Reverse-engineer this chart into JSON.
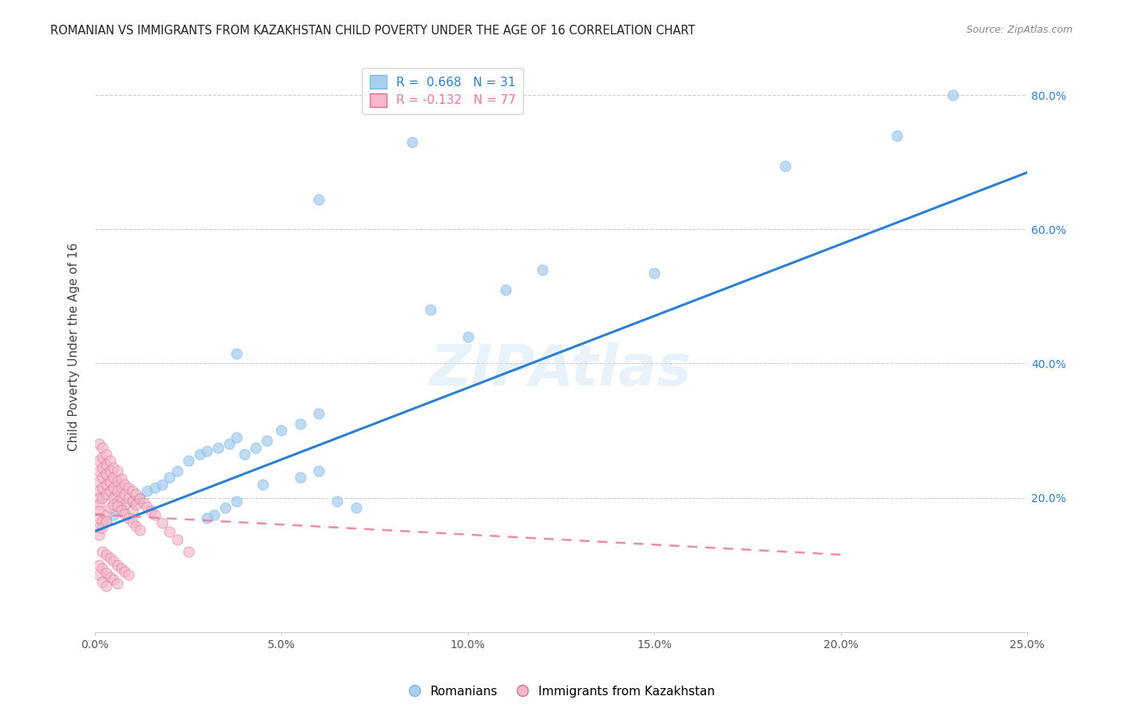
{
  "title": "ROMANIAN VS IMMIGRANTS FROM KAZAKHSTAN CHILD POVERTY UNDER THE AGE OF 16 CORRELATION CHART",
  "source": "Source: ZipAtlas.com",
  "ylabel": "Child Poverty Under the Age of 16",
  "xlim": [
    0.0,
    0.25
  ],
  "ylim": [
    0.0,
    0.85
  ],
  "x_ticks": [
    0.0,
    0.05,
    0.1,
    0.15,
    0.2,
    0.25
  ],
  "y_ticks": [
    0.2,
    0.4,
    0.6,
    0.8
  ],
  "romanians_color": "#a8cff0",
  "kazakhs_color": "#f5b8cb",
  "romanians_R": 0.668,
  "romanians_N": 31,
  "kazakhs_R": -0.132,
  "kazakhs_N": 77,
  "trend_blue_color": "#2b7fd4",
  "trend_pink_color": "#e8799a",
  "watermark": "ZIPAtlas",
  "blue_trend_x0": 0.0,
  "blue_trend_y0": 0.15,
  "blue_trend_x1": 0.25,
  "blue_trend_y1": 0.685,
  "pink_trend_x0": 0.0,
  "pink_trend_y0": 0.175,
  "pink_trend_x1": 0.2,
  "pink_trend_y1": 0.115,
  "romanians_x": [
    0.003,
    0.005,
    0.007,
    0.01,
    0.012,
    0.014,
    0.016,
    0.018,
    0.02,
    0.022,
    0.025,
    0.028,
    0.03,
    0.033,
    0.036,
    0.038,
    0.04,
    0.043,
    0.046,
    0.05,
    0.055,
    0.06,
    0.065,
    0.07,
    0.055,
    0.06,
    0.045,
    0.038,
    0.035,
    0.032,
    0.03
  ],
  "romanians_y": [
    0.165,
    0.175,
    0.185,
    0.195,
    0.2,
    0.21,
    0.215,
    0.22,
    0.23,
    0.24,
    0.255,
    0.265,
    0.27,
    0.275,
    0.28,
    0.29,
    0.265,
    0.275,
    0.285,
    0.3,
    0.31,
    0.325,
    0.195,
    0.185,
    0.23,
    0.24,
    0.22,
    0.195,
    0.185,
    0.175,
    0.17
  ],
  "romanians_outliers_x": [
    0.038,
    0.06,
    0.085,
    0.09,
    0.1,
    0.11,
    0.12,
    0.15,
    0.185,
    0.215,
    0.23
  ],
  "romanians_outliers_y": [
    0.415,
    0.645,
    0.73,
    0.48,
    0.44,
    0.51,
    0.54,
    0.535,
    0.695,
    0.74,
    0.8
  ],
  "kazakhs_x": [
    0.001,
    0.001,
    0.001,
    0.001,
    0.001,
    0.001,
    0.001,
    0.001,
    0.001,
    0.002,
    0.002,
    0.002,
    0.002,
    0.002,
    0.002,
    0.003,
    0.003,
    0.003,
    0.003,
    0.003,
    0.004,
    0.004,
    0.004,
    0.004,
    0.005,
    0.005,
    0.005,
    0.005,
    0.006,
    0.006,
    0.006,
    0.006,
    0.007,
    0.007,
    0.007,
    0.008,
    0.008,
    0.008,
    0.009,
    0.009,
    0.01,
    0.01,
    0.01,
    0.011,
    0.011,
    0.012,
    0.013,
    0.014,
    0.015,
    0.016,
    0.018,
    0.02,
    0.022,
    0.025,
    0.001,
    0.001,
    0.002,
    0.002,
    0.003,
    0.003,
    0.004,
    0.005,
    0.006,
    0.007,
    0.008,
    0.009,
    0.01,
    0.011,
    0.012,
    0.002,
    0.003,
    0.004,
    0.005,
    0.006,
    0.007,
    0.008,
    0.009
  ],
  "kazakhs_y": [
    0.28,
    0.255,
    0.24,
    0.225,
    0.21,
    0.2,
    0.19,
    0.18,
    0.17,
    0.275,
    0.26,
    0.245,
    0.23,
    0.215,
    0.2,
    0.265,
    0.25,
    0.235,
    0.22,
    0.205,
    0.255,
    0.24,
    0.225,
    0.21,
    0.245,
    0.23,
    0.215,
    0.2,
    0.24,
    0.225,
    0.21,
    0.195,
    0.228,
    0.215,
    0.2,
    0.22,
    0.205,
    0.19,
    0.215,
    0.2,
    0.21,
    0.195,
    0.18,
    0.205,
    0.19,
    0.198,
    0.192,
    0.186,
    0.18,
    0.174,
    0.162,
    0.15,
    0.138,
    0.12,
    0.155,
    0.145,
    0.165,
    0.155,
    0.175,
    0.165,
    0.185,
    0.19,
    0.188,
    0.182,
    0.176,
    0.17,
    0.164,
    0.158,
    0.152,
    0.12,
    0.115,
    0.11,
    0.105,
    0.1,
    0.095,
    0.09,
    0.085
  ],
  "kazakhs_extra_x": [
    0.001,
    0.001,
    0.002,
    0.003,
    0.004,
    0.005,
    0.006,
    0.002,
    0.003
  ],
  "kazakhs_extra_y": [
    0.1,
    0.085,
    0.095,
    0.088,
    0.082,
    0.078,
    0.072,
    0.075,
    0.068
  ]
}
